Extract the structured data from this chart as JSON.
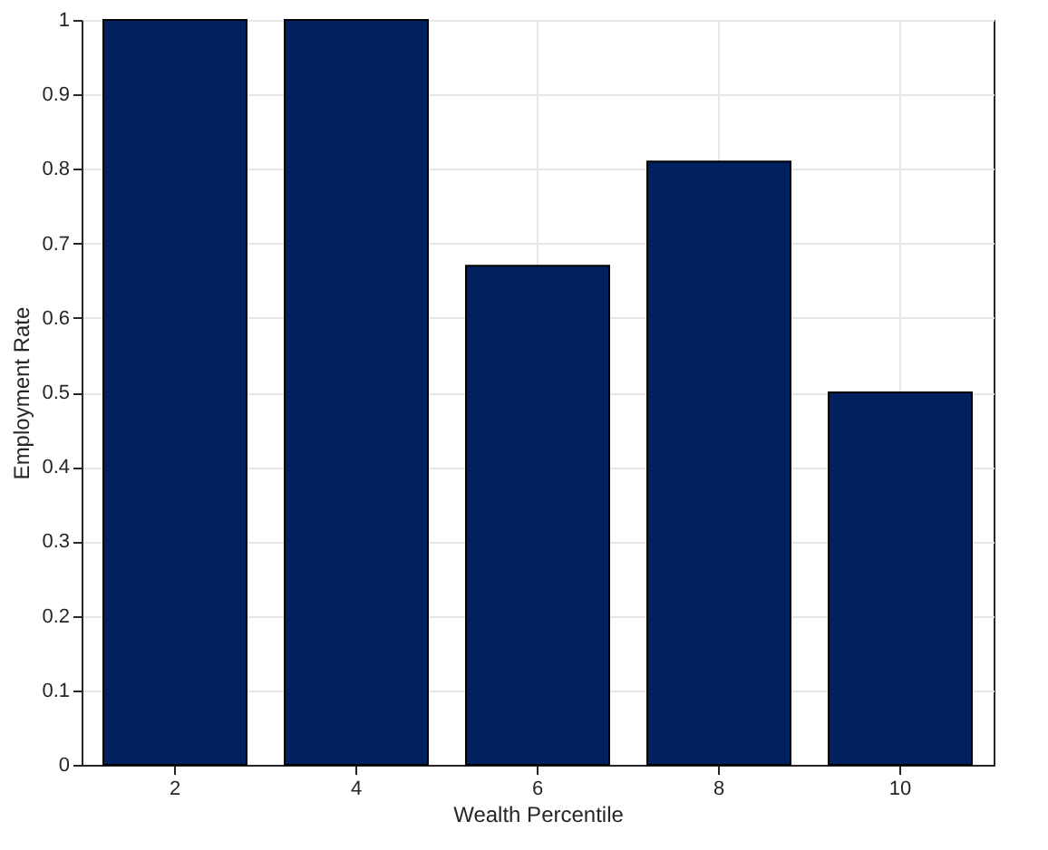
{
  "chart_data": {
    "type": "bar",
    "xlabel": "Wealth Percentile",
    "ylabel": "Employment Rate",
    "categories": [
      "2",
      "4",
      "6",
      "8",
      "10"
    ],
    "values": [
      1,
      1,
      0.67,
      0.81,
      0.5
    ],
    "color": "#002060",
    "ylim": [
      0,
      1
    ],
    "yticks": [
      0,
      0.1,
      0.2,
      0.3,
      0.4,
      0.5,
      0.6,
      0.7,
      0.8,
      0.9,
      1
    ],
    "grid": true
  }
}
